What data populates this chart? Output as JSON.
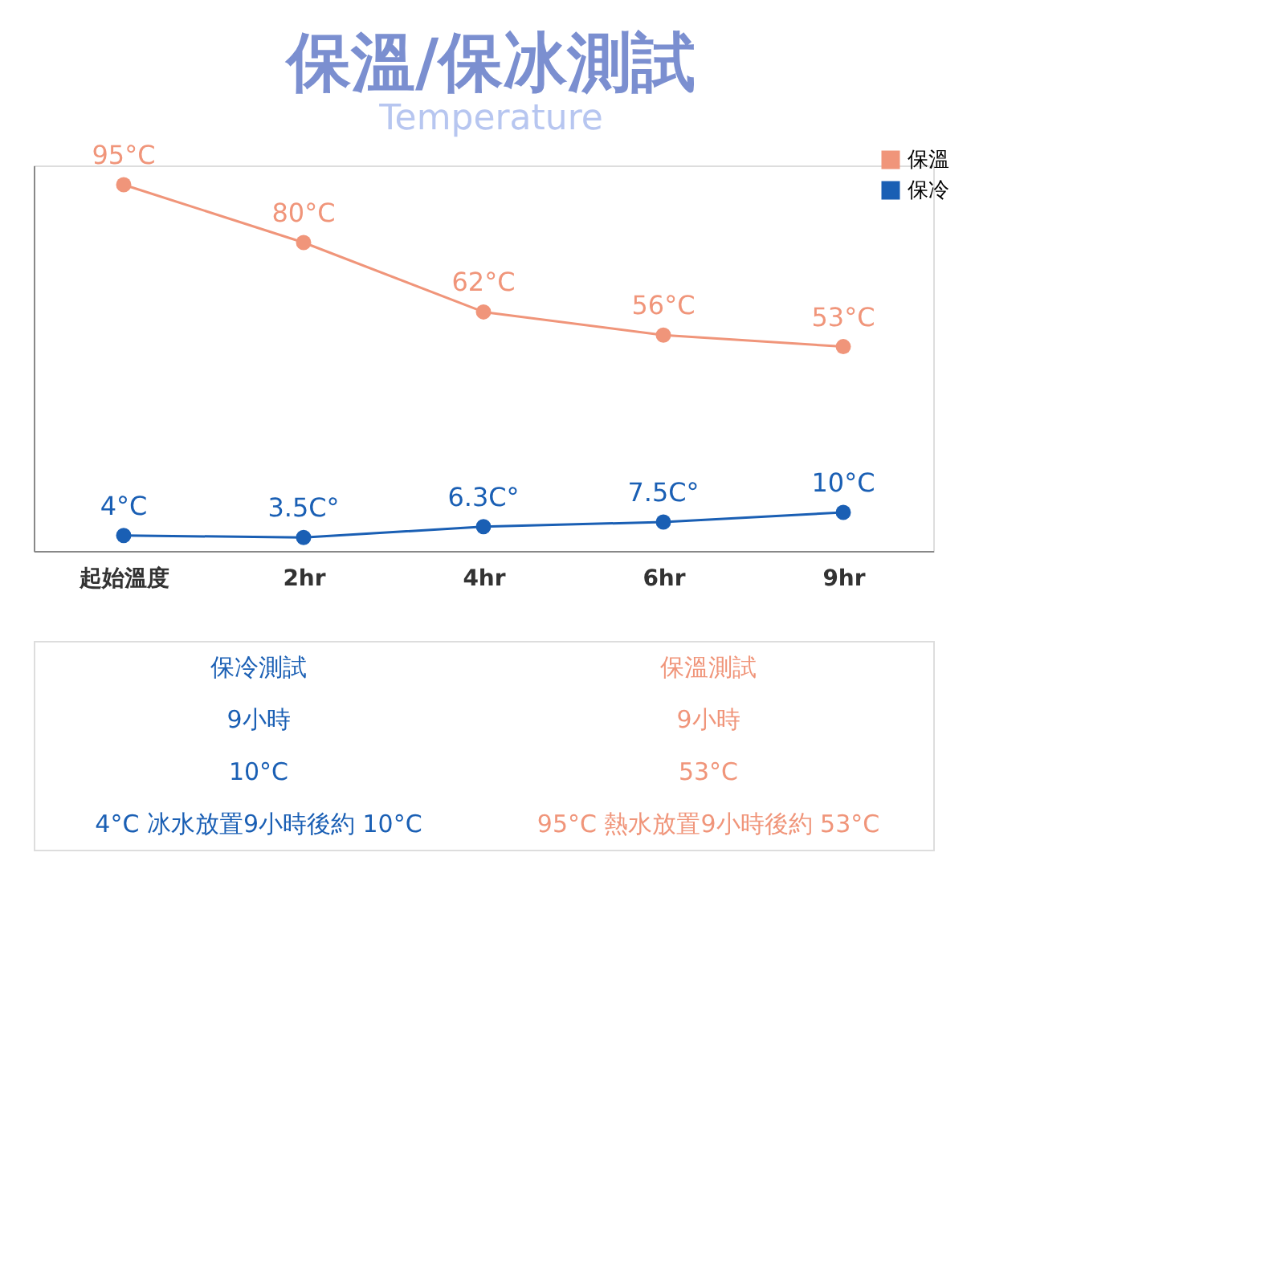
{
  "chart_data": {
    "type": "line",
    "title": "保溫/保冰測試",
    "subtitle": "Temperature",
    "categories": [
      "起始溫度",
      "2hr",
      "4hr",
      "6hr",
      "9hr"
    ],
    "series": [
      {
        "name": "保溫",
        "color": "#f0957a",
        "values": [
          95,
          80,
          62,
          56,
          53
        ],
        "value_labels": [
          "95°C",
          "80°C",
          "62°C",
          "56°C",
          "53°C"
        ]
      },
      {
        "name": "保冷",
        "color": "#1a5fb4",
        "values": [
          4,
          3.5,
          6.3,
          7.5,
          10
        ],
        "value_labels": [
          "4°C",
          "3.5C°",
          "6.3C°",
          "7.5C°",
          "10°C"
        ]
      }
    ],
    "ylim": [
      0,
      100
    ],
    "tick_labels": "x",
    "grid": false,
    "legend": "top right",
    "marker": "circle",
    "line_style": "solid",
    "annotations": [
      "保冷測試",
      "9小時",
      "10°C",
      "4°C 冰水放置9小時後約 10°C",
      "保溫測試",
      "9小時",
      "53°C",
      "95°C 熱水放置9小時後約 53°C"
    ]
  }
}
